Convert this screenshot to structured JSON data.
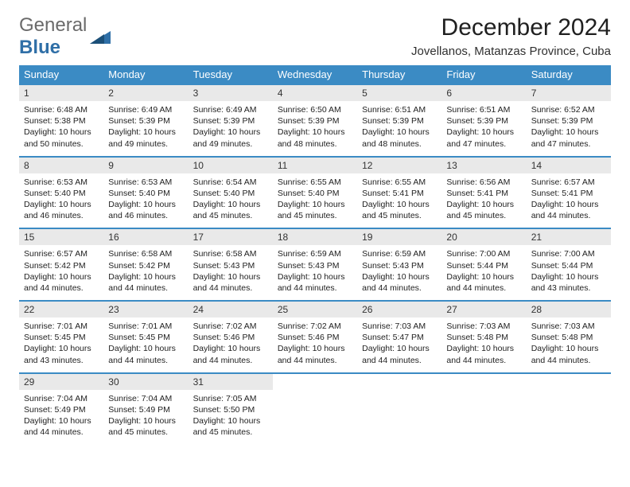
{
  "brand": {
    "part1": "General",
    "part2": "Blue"
  },
  "title": "December 2024",
  "location": "Jovellanos, Matanzas Province, Cuba",
  "colors": {
    "header_bg": "#3b8bc4",
    "header_text": "#ffffff",
    "daynum_bg": "#e9e9e9",
    "rule": "#3b8bc4",
    "page_bg": "#ffffff",
    "text": "#222222"
  },
  "typography": {
    "title_size_pt": 22,
    "location_size_pt": 11,
    "dow_size_pt": 10,
    "cell_size_pt": 8
  },
  "days_of_week": [
    "Sunday",
    "Monday",
    "Tuesday",
    "Wednesday",
    "Thursday",
    "Friday",
    "Saturday"
  ],
  "weeks": [
    [
      {
        "n": "1",
        "sr": "Sunrise: 6:48 AM",
        "ss": "Sunset: 5:38 PM",
        "d1": "Daylight: 10 hours",
        "d2": "and 50 minutes."
      },
      {
        "n": "2",
        "sr": "Sunrise: 6:49 AM",
        "ss": "Sunset: 5:39 PM",
        "d1": "Daylight: 10 hours",
        "d2": "and 49 minutes."
      },
      {
        "n": "3",
        "sr": "Sunrise: 6:49 AM",
        "ss": "Sunset: 5:39 PM",
        "d1": "Daylight: 10 hours",
        "d2": "and 49 minutes."
      },
      {
        "n": "4",
        "sr": "Sunrise: 6:50 AM",
        "ss": "Sunset: 5:39 PM",
        "d1": "Daylight: 10 hours",
        "d2": "and 48 minutes."
      },
      {
        "n": "5",
        "sr": "Sunrise: 6:51 AM",
        "ss": "Sunset: 5:39 PM",
        "d1": "Daylight: 10 hours",
        "d2": "and 48 minutes."
      },
      {
        "n": "6",
        "sr": "Sunrise: 6:51 AM",
        "ss": "Sunset: 5:39 PM",
        "d1": "Daylight: 10 hours",
        "d2": "and 47 minutes."
      },
      {
        "n": "7",
        "sr": "Sunrise: 6:52 AM",
        "ss": "Sunset: 5:39 PM",
        "d1": "Daylight: 10 hours",
        "d2": "and 47 minutes."
      }
    ],
    [
      {
        "n": "8",
        "sr": "Sunrise: 6:53 AM",
        "ss": "Sunset: 5:40 PM",
        "d1": "Daylight: 10 hours",
        "d2": "and 46 minutes."
      },
      {
        "n": "9",
        "sr": "Sunrise: 6:53 AM",
        "ss": "Sunset: 5:40 PM",
        "d1": "Daylight: 10 hours",
        "d2": "and 46 minutes."
      },
      {
        "n": "10",
        "sr": "Sunrise: 6:54 AM",
        "ss": "Sunset: 5:40 PM",
        "d1": "Daylight: 10 hours",
        "d2": "and 45 minutes."
      },
      {
        "n": "11",
        "sr": "Sunrise: 6:55 AM",
        "ss": "Sunset: 5:40 PM",
        "d1": "Daylight: 10 hours",
        "d2": "and 45 minutes."
      },
      {
        "n": "12",
        "sr": "Sunrise: 6:55 AM",
        "ss": "Sunset: 5:41 PM",
        "d1": "Daylight: 10 hours",
        "d2": "and 45 minutes."
      },
      {
        "n": "13",
        "sr": "Sunrise: 6:56 AM",
        "ss": "Sunset: 5:41 PM",
        "d1": "Daylight: 10 hours",
        "d2": "and 45 minutes."
      },
      {
        "n": "14",
        "sr": "Sunrise: 6:57 AM",
        "ss": "Sunset: 5:41 PM",
        "d1": "Daylight: 10 hours",
        "d2": "and 44 minutes."
      }
    ],
    [
      {
        "n": "15",
        "sr": "Sunrise: 6:57 AM",
        "ss": "Sunset: 5:42 PM",
        "d1": "Daylight: 10 hours",
        "d2": "and 44 minutes."
      },
      {
        "n": "16",
        "sr": "Sunrise: 6:58 AM",
        "ss": "Sunset: 5:42 PM",
        "d1": "Daylight: 10 hours",
        "d2": "and 44 minutes."
      },
      {
        "n": "17",
        "sr": "Sunrise: 6:58 AM",
        "ss": "Sunset: 5:43 PM",
        "d1": "Daylight: 10 hours",
        "d2": "and 44 minutes."
      },
      {
        "n": "18",
        "sr": "Sunrise: 6:59 AM",
        "ss": "Sunset: 5:43 PM",
        "d1": "Daylight: 10 hours",
        "d2": "and 44 minutes."
      },
      {
        "n": "19",
        "sr": "Sunrise: 6:59 AM",
        "ss": "Sunset: 5:43 PM",
        "d1": "Daylight: 10 hours",
        "d2": "and 44 minutes."
      },
      {
        "n": "20",
        "sr": "Sunrise: 7:00 AM",
        "ss": "Sunset: 5:44 PM",
        "d1": "Daylight: 10 hours",
        "d2": "and 44 minutes."
      },
      {
        "n": "21",
        "sr": "Sunrise: 7:00 AM",
        "ss": "Sunset: 5:44 PM",
        "d1": "Daylight: 10 hours",
        "d2": "and 43 minutes."
      }
    ],
    [
      {
        "n": "22",
        "sr": "Sunrise: 7:01 AM",
        "ss": "Sunset: 5:45 PM",
        "d1": "Daylight: 10 hours",
        "d2": "and 43 minutes."
      },
      {
        "n": "23",
        "sr": "Sunrise: 7:01 AM",
        "ss": "Sunset: 5:45 PM",
        "d1": "Daylight: 10 hours",
        "d2": "and 44 minutes."
      },
      {
        "n": "24",
        "sr": "Sunrise: 7:02 AM",
        "ss": "Sunset: 5:46 PM",
        "d1": "Daylight: 10 hours",
        "d2": "and 44 minutes."
      },
      {
        "n": "25",
        "sr": "Sunrise: 7:02 AM",
        "ss": "Sunset: 5:46 PM",
        "d1": "Daylight: 10 hours",
        "d2": "and 44 minutes."
      },
      {
        "n": "26",
        "sr": "Sunrise: 7:03 AM",
        "ss": "Sunset: 5:47 PM",
        "d1": "Daylight: 10 hours",
        "d2": "and 44 minutes."
      },
      {
        "n": "27",
        "sr": "Sunrise: 7:03 AM",
        "ss": "Sunset: 5:48 PM",
        "d1": "Daylight: 10 hours",
        "d2": "and 44 minutes."
      },
      {
        "n": "28",
        "sr": "Sunrise: 7:03 AM",
        "ss": "Sunset: 5:48 PM",
        "d1": "Daylight: 10 hours",
        "d2": "and 44 minutes."
      }
    ],
    [
      {
        "n": "29",
        "sr": "Sunrise: 7:04 AM",
        "ss": "Sunset: 5:49 PM",
        "d1": "Daylight: 10 hours",
        "d2": "and 44 minutes."
      },
      {
        "n": "30",
        "sr": "Sunrise: 7:04 AM",
        "ss": "Sunset: 5:49 PM",
        "d1": "Daylight: 10 hours",
        "d2": "and 45 minutes."
      },
      {
        "n": "31",
        "sr": "Sunrise: 7:05 AM",
        "ss": "Sunset: 5:50 PM",
        "d1": "Daylight: 10 hours",
        "d2": "and 45 minutes."
      },
      null,
      null,
      null,
      null
    ]
  ]
}
